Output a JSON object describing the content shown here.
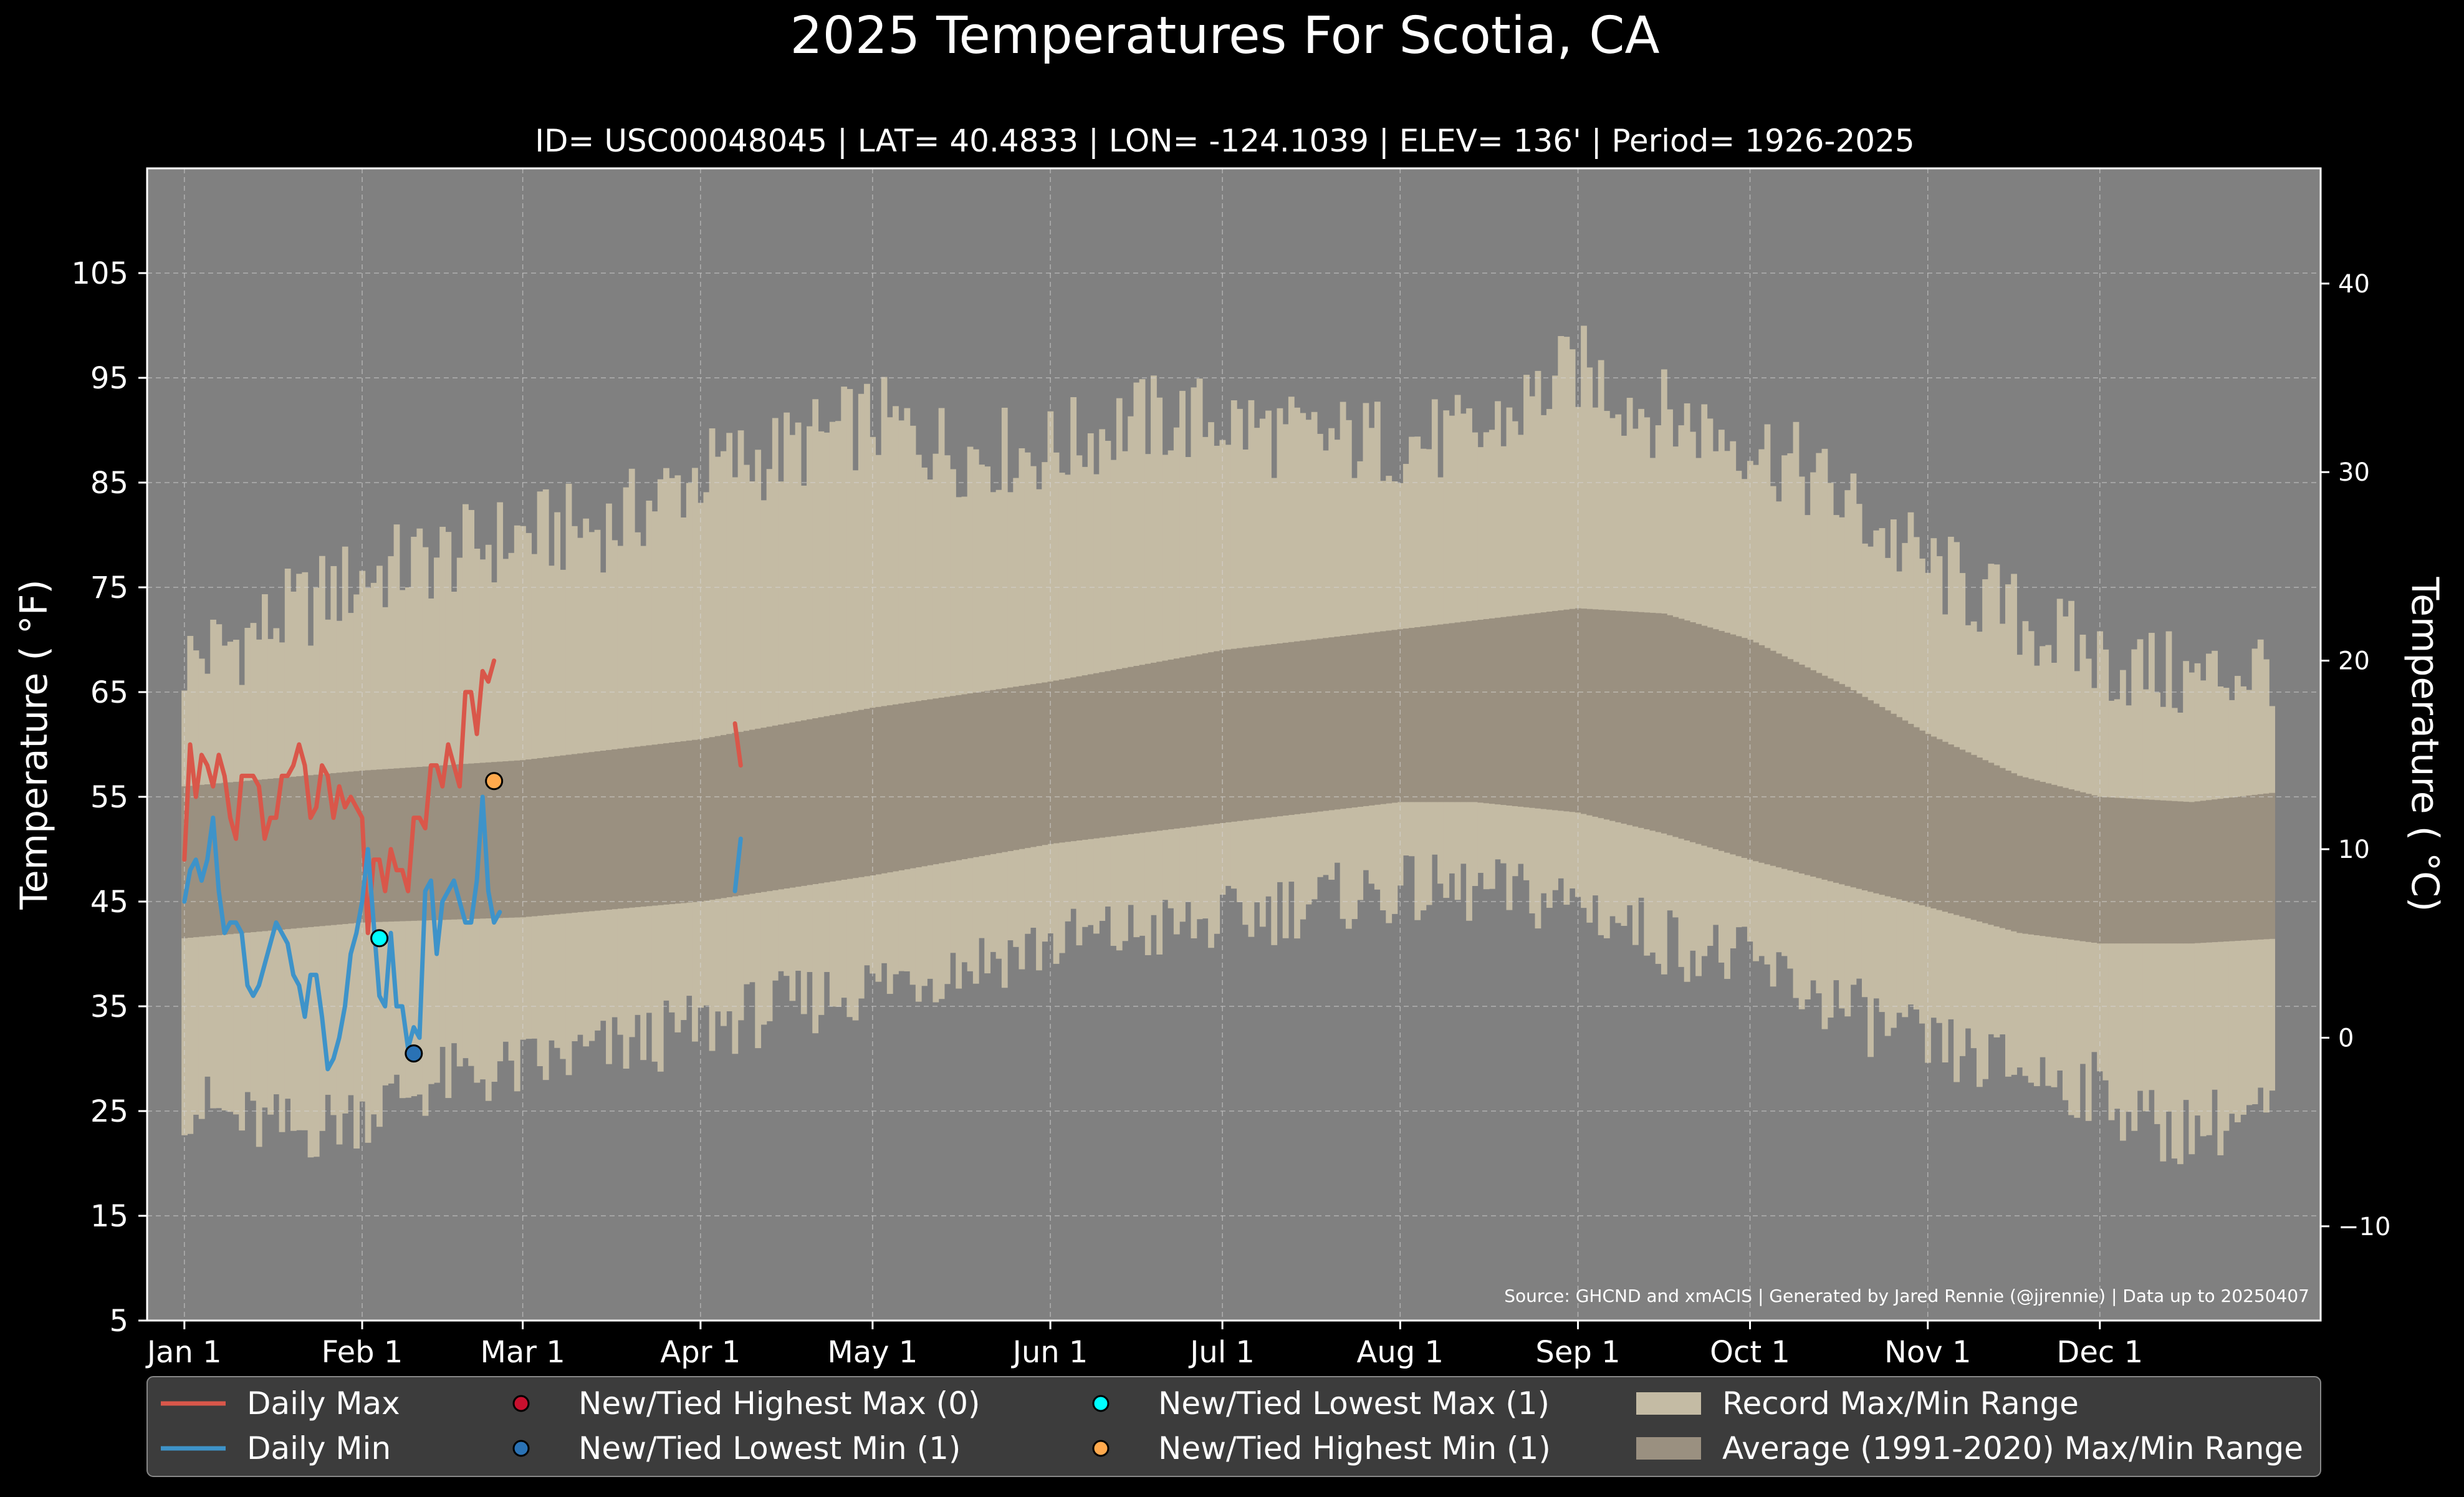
{
  "chart_data": {
    "type": "line",
    "title": "2025 Temperatures For Scotia, CA",
    "subtitle": "ID= USC00048045 | LAT= 40.4833 | LON= -124.1039 | ELEV= 136' | Period= 1926-2025",
    "ylabel_left": "Temperature ($^\\circ$F)",
    "ylabel_left_display": "Temperature ( °F)",
    "ylabel_right_display": "Temperature ( °C)",
    "source": "Source: GHCND and xmACIS | Generated by Jared Rennie (@jjrennie) | Data up to 20250407",
    "ylim_f": [
      5,
      115
    ],
    "yticks_f": [
      5,
      15,
      25,
      35,
      45,
      55,
      65,
      75,
      85,
      95,
      105
    ],
    "yticks_c": [
      -10,
      0,
      10,
      20,
      30,
      40
    ],
    "ytick_c_labels": [
      "−10",
      "0",
      "10",
      "20",
      "30",
      "40"
    ],
    "xlim_days": [
      0,
      366
    ],
    "x_months": [
      {
        "label": "Jan 1",
        "day": 0
      },
      {
        "label": "Feb 1",
        "day": 31
      },
      {
        "label": "Mar 1",
        "day": 59
      },
      {
        "label": "Apr 1",
        "day": 90
      },
      {
        "label": "May 1",
        "day": 120
      },
      {
        "label": "Jun 1",
        "day": 151
      },
      {
        "label": "Jul 1",
        "day": 181
      },
      {
        "label": "Aug 1",
        "day": 212
      },
      {
        "label": "Sep 1",
        "day": 243
      },
      {
        "label": "Oct 1",
        "day": 273
      },
      {
        "label": "Nov 1",
        "day": 304
      },
      {
        "label": "Dec 1",
        "day": 334
      }
    ],
    "grid": true,
    "colors": {
      "background": "#000000",
      "axes_bg": "#808080",
      "record_range": "#c4bba4",
      "average_range": "#9a9080",
      "daily_max": "#d9574a",
      "daily_min": "#3e93c9",
      "new_highest_max": "#c8102e",
      "new_lowest_min": "#2a72b5",
      "new_lowest_max": "#00ffff",
      "new_highest_min": "#ffa94d",
      "legend_bg": "#3c3c3c"
    },
    "record_max_anchors": [
      [
        0,
        68
      ],
      [
        10,
        70
      ],
      [
        20,
        73
      ],
      [
        31,
        76
      ],
      [
        45,
        78
      ],
      [
        59,
        80
      ],
      [
        75,
        81
      ],
      [
        90,
        86
      ],
      [
        105,
        88
      ],
      [
        120,
        91
      ],
      [
        135,
        88
      ],
      [
        151,
        88
      ],
      [
        165,
        91
      ],
      [
        181,
        91
      ],
      [
        195,
        89
      ],
      [
        212,
        89
      ],
      [
        225,
        89
      ],
      [
        243,
        96
      ],
      [
        255,
        92
      ],
      [
        273,
        89
      ],
      [
        285,
        85
      ],
      [
        304,
        77
      ],
      [
        320,
        72
      ],
      [
        334,
        68
      ],
      [
        350,
        66
      ],
      [
        366,
        68
      ]
    ],
    "record_min_anchors": [
      [
        0,
        26
      ],
      [
        10,
        24
      ],
      [
        20,
        23
      ],
      [
        31,
        25
      ],
      [
        45,
        28
      ],
      [
        59,
        29
      ],
      [
        75,
        31
      ],
      [
        90,
        33
      ],
      [
        105,
        35
      ],
      [
        120,
        37
      ],
      [
        135,
        39
      ],
      [
        151,
        41
      ],
      [
        165,
        42
      ],
      [
        181,
        43
      ],
      [
        195,
        45
      ],
      [
        212,
        46
      ],
      [
        225,
        46
      ],
      [
        243,
        45
      ],
      [
        255,
        42
      ],
      [
        273,
        39
      ],
      [
        285,
        36
      ],
      [
        304,
        31
      ],
      [
        320,
        29
      ],
      [
        334,
        27
      ],
      [
        345,
        23
      ],
      [
        355,
        24
      ],
      [
        366,
        25
      ]
    ],
    "avg_max_anchors": [
      [
        0,
        56
      ],
      [
        31,
        57.5
      ],
      [
        59,
        58.5
      ],
      [
        90,
        60.5
      ],
      [
        120,
        63.5
      ],
      [
        151,
        66
      ],
      [
        181,
        69
      ],
      [
        212,
        71
      ],
      [
        243,
        73
      ],
      [
        258,
        72.5
      ],
      [
        273,
        70
      ],
      [
        290,
        65.5
      ],
      [
        304,
        61
      ],
      [
        320,
        57
      ],
      [
        334,
        55
      ],
      [
        350,
        54.5
      ],
      [
        366,
        55.5
      ]
    ],
    "avg_min_anchors": [
      [
        0,
        41.5
      ],
      [
        31,
        43
      ],
      [
        59,
        43.5
      ],
      [
        90,
        45
      ],
      [
        120,
        47.5
      ],
      [
        151,
        50.5
      ],
      [
        181,
        52.5
      ],
      [
        212,
        54.5
      ],
      [
        225,
        54.5
      ],
      [
        243,
        53.5
      ],
      [
        258,
        51.5
      ],
      [
        273,
        49
      ],
      [
        290,
        46.5
      ],
      [
        304,
        44.5
      ],
      [
        320,
        42
      ],
      [
        334,
        41
      ],
      [
        350,
        41
      ],
      [
        366,
        41.5
      ]
    ],
    "series": [
      {
        "name": "Daily Max",
        "segments": [
          {
            "start_day": 0,
            "values": [
              49,
              60,
              55,
              59,
              58,
              56,
              59,
              57,
              53,
              51,
              57,
              57,
              57,
              56,
              51,
              53,
              53,
              57,
              57,
              58,
              60,
              58,
              53,
              54,
              58,
              57,
              53,
              56,
              54,
              55,
              54,
              53,
              42,
              49,
              49,
              46,
              50,
              48,
              48,
              46,
              53,
              53,
              52,
              58,
              58,
              56,
              60,
              58,
              56,
              65,
              65,
              61,
              67,
              66,
              68
            ]
          },
          {
            "start_day": 96,
            "values": [
              62,
              58
            ]
          }
        ]
      },
      {
        "name": "Daily Min",
        "segments": [
          {
            "start_day": 0,
            "values": [
              45,
              48,
              49,
              47,
              49,
              53,
              46,
              42,
              43,
              43,
              42,
              37,
              36,
              37,
              39,
              41,
              43,
              42,
              41,
              38,
              37,
              34,
              38,
              38,
              34,
              29,
              30,
              32,
              35,
              40,
              42,
              45,
              50,
              43,
              36,
              35,
              42,
              35,
              35,
              31,
              33,
              32,
              46,
              47,
              40,
              45,
              46,
              47,
              45,
              43,
              43,
              47,
              55,
              46,
              43,
              44
            ]
          },
          {
            "start_day": 96,
            "values": [
              46,
              51
            ]
          }
        ]
      }
    ],
    "records": [
      {
        "name": "New/Tied Lowest Max",
        "day": 34,
        "value": 41.5,
        "color_key": "new_lowest_max"
      },
      {
        "name": "New/Tied Lowest Min",
        "day": 40,
        "value": 30.5,
        "color_key": "new_lowest_min"
      },
      {
        "name": "New/Tied Highest Min",
        "day": 54,
        "value": 56.5,
        "color_key": "new_highest_min"
      }
    ],
    "legend": {
      "placement": "bottom",
      "entries": [
        {
          "label": "Daily Max",
          "kind": "line",
          "color_key": "daily_max"
        },
        {
          "label": "Daily Min",
          "kind": "line",
          "color_key": "daily_min"
        },
        {
          "label": "New/Tied Highest Max (0)",
          "kind": "dot",
          "color_key": "new_highest_max"
        },
        {
          "label": "New/Tied Lowest Min (1)",
          "kind": "dot",
          "color_key": "new_lowest_min"
        },
        {
          "label": "New/Tied Lowest Max (1)",
          "kind": "dot",
          "color_key": "new_lowest_max"
        },
        {
          "label": "New/Tied Highest Min (1)",
          "kind": "dot",
          "color_key": "new_highest_min"
        },
        {
          "label": "Record Max/Min Range",
          "kind": "patch",
          "color_key": "record_range"
        },
        {
          "label": "Average (1991-2020) Max/Min Range",
          "kind": "patch",
          "color_key": "average_range"
        }
      ]
    }
  }
}
